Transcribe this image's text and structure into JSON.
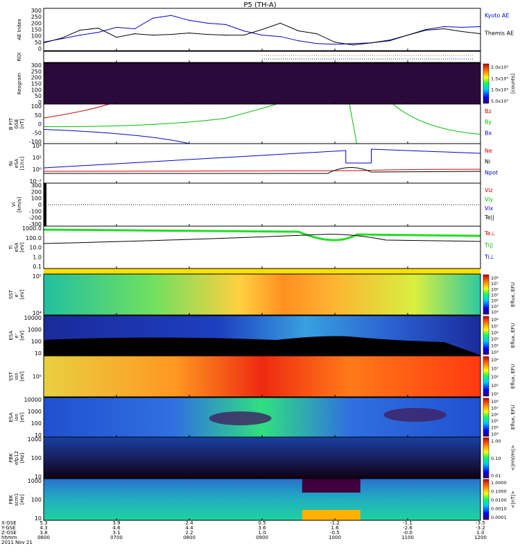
{
  "title": "P5 (TH-A)",
  "date_label": "2011 Nov 21",
  "panels": [
    {
      "id": "ae",
      "ylabel": [
        "AE Index"
      ],
      "yticks": [
        "300",
        "250",
        "200",
        "150",
        "100",
        "50",
        "0"
      ],
      "right_labels": [
        {
          "text": "Kyoto AE",
          "color": "#0000cc"
        },
        {
          "text": "Themis AE",
          "color": "#000000"
        }
      ]
    },
    {
      "id": "roi",
      "ylabel": [
        "ROI"
      ],
      "yticks": [],
      "right_labels": []
    },
    {
      "id": "keogram",
      "ylabel": [
        "Keogram"
      ],
      "yticks": [
        "300",
        "250",
        "200",
        "150",
        "100",
        "50",
        "0"
      ],
      "right_labels": [],
      "colorbar": {
        "ticks": [
          "2.0x10⁴",
          "1.5x10⁴",
          "1.0x10⁴",
          "5.0x10³"
        ],
        "label": "[counts]"
      }
    },
    {
      "id": "bfield",
      "ylabel": [
        "B FIT",
        "GSE",
        "[nT]"
      ],
      "yticks": [
        "100",
        "50",
        "0",
        "-50",
        "-100"
      ],
      "right_labels": [
        {
          "text": "Bz",
          "color": "#cc0000"
        },
        {
          "text": "By",
          "color": "#00bb00"
        },
        {
          "text": "Bx",
          "color": "#0000cc"
        }
      ]
    },
    {
      "id": "density",
      "ylabel": [
        "Ni",
        "eSA",
        "[1/cc]"
      ],
      "yticks": [
        "10⁴",
        "10²",
        "10⁰",
        "10⁻²"
      ],
      "right_labels": [
        {
          "text": "Ne",
          "color": "#cc0000"
        },
        {
          "text": "Ni",
          "color": "#000000"
        },
        {
          "text": "Npot",
          "color": "#0000cc"
        }
      ]
    },
    {
      "id": "velocity",
      "ylabel": [
        "Vi",
        "[km/s]"
      ],
      "yticks": [
        "300",
        "200",
        "100",
        "0",
        "-100",
        "-200",
        "-300"
      ],
      "right_labels": [
        {
          "text": "Viz",
          "color": "#cc0000"
        },
        {
          "text": "Viy",
          "color": "#00bb00"
        },
        {
          "text": "Vix",
          "color": "#0000cc"
        },
        {
          "text": "Te||",
          "color": "#000000"
        }
      ]
    },
    {
      "id": "temp",
      "ylabel": [
        "Ti",
        "eSA",
        "[eV]"
      ],
      "yticks": [
        "1000.0",
        "100.0",
        "10.0",
        "1.0",
        "0.1"
      ],
      "right_labels": [
        {
          "text": "Te⊥",
          "color": "#cc0000"
        },
        {
          "text": "Ti||",
          "color": "#00bb00"
        },
        {
          "text": "Ti⊥",
          "color": "#0000cc"
        }
      ]
    },
    {
      "id": "sst_e",
      "ylabel": [
        "SST",
        "e⁻",
        "[eV]"
      ],
      "yticks": [
        "10⁵",
        "10⁴"
      ],
      "right_labels": [],
      "colorbar": {
        "ticks": [
          "10⁸",
          "10⁷",
          "10⁶",
          "10⁵",
          "10⁴",
          "10³",
          "10²"
        ],
        "label": "Eflux, EFU"
      }
    },
    {
      "id": "esa_e",
      "ylabel": [
        "ESA",
        "e⁻",
        "[eV]"
      ],
      "yticks": [
        "10000",
        "1000",
        "100",
        "10"
      ],
      "right_labels": [],
      "colorbar": {
        "ticks": [
          "10⁸",
          "10⁷",
          "10⁶",
          "10⁵",
          "10⁴",
          "10³"
        ],
        "label": "Eflux, EFU"
      }
    },
    {
      "id": "sst_i",
      "ylabel": [
        "SST",
        "ion",
        "[eV]"
      ],
      "yticks": [
        "10⁵"
      ],
      "right_labels": [],
      "colorbar": {
        "ticks": [
          "10⁸",
          "10⁷",
          "10⁶",
          "10⁵",
          "10⁴"
        ],
        "label": "Eflux, EFU"
      }
    },
    {
      "id": "esa_i",
      "ylabel": [
        "ESA",
        "ion",
        "[eV]"
      ],
      "yticks": [
        "10000",
        "1000",
        "100",
        "10"
      ],
      "right_labels": [],
      "colorbar": {
        "ticks": [
          "10⁸",
          "10⁷",
          "10⁶",
          "10⁵",
          "10⁴",
          "10³"
        ],
        "label": "Eflux, EFU"
      }
    },
    {
      "id": "fbk_e",
      "ylabel": [
        "FBK",
        "efp12",
        "[Hz]"
      ],
      "yticks": [
        "1000",
        "100",
        "10"
      ],
      "right_labels": [],
      "colorbar": {
        "ticks": [
          "1.00",
          "0.10",
          "0.01"
        ],
        "label": "<|mV/m|>"
      }
    },
    {
      "id": "fbk_b",
      "ylabel": [
        "FBK",
        "scm1",
        "[Hz]"
      ],
      "yticks": [
        "1000",
        "100",
        "10"
      ],
      "right_labels": [],
      "colorbar": {
        "ticks": [
          "1.0000",
          "0.1000",
          "0.0100",
          "0.0010",
          "0.0001"
        ],
        "label": "<|nT|>"
      }
    }
  ],
  "xaxis": {
    "row_labels": [
      "X-GSE",
      "Y-GSE",
      "Z-GSE",
      "hhmm"
    ],
    "columns": [
      [
        "5.3",
        "4.3",
        "3.8",
        "0600"
      ],
      [
        "3.9",
        "4.6",
        "3.1",
        "0700"
      ],
      [
        "2.4",
        "4.4",
        "2.2",
        "0800"
      ],
      [
        "0.5",
        "3.6",
        "1.0",
        "0900"
      ],
      [
        "-1.2",
        "1.6",
        "-0.5",
        "1000"
      ],
      [
        "-1.1",
        "-2.6",
        "-0.0",
        "1100"
      ],
      [
        "-3.5",
        "-3.2",
        "1.0",
        "1200"
      ]
    ]
  },
  "chart_data": {
    "type": "line",
    "title": "P5 (TH-A)",
    "x_hours": [
      6.0,
      6.25,
      6.5,
      6.75,
      7.0,
      7.25,
      7.5,
      7.75,
      8.0,
      8.25,
      8.5,
      8.75,
      9.0,
      9.25,
      9.5,
      9.75,
      10.0,
      10.25,
      10.5,
      10.75,
      11.0,
      11.25,
      11.5,
      11.75,
      12.0
    ],
    "series": [
      {
        "name": "Kyoto AE",
        "color": "#0000cc",
        "values": [
          60,
          85,
          110,
          130,
          165,
          155,
          230,
          250,
          215,
          195,
          185,
          140,
          110,
          100,
          70,
          50,
          45,
          50,
          55,
          75,
          110,
          150,
          170,
          165,
          170
        ]
      },
      {
        "name": "Themis AE",
        "color": "#000000",
        "values": [
          55,
          90,
          145,
          160,
          95,
          120,
          110,
          115,
          125,
          115,
          110,
          110,
          150,
          195,
          140,
          120,
          60,
          40,
          55,
          70,
          110,
          145,
          155,
          135,
          120
        ]
      }
    ],
    "ylim": [
      0,
      300
    ],
    "ylabel": "AE Index"
  }
}
